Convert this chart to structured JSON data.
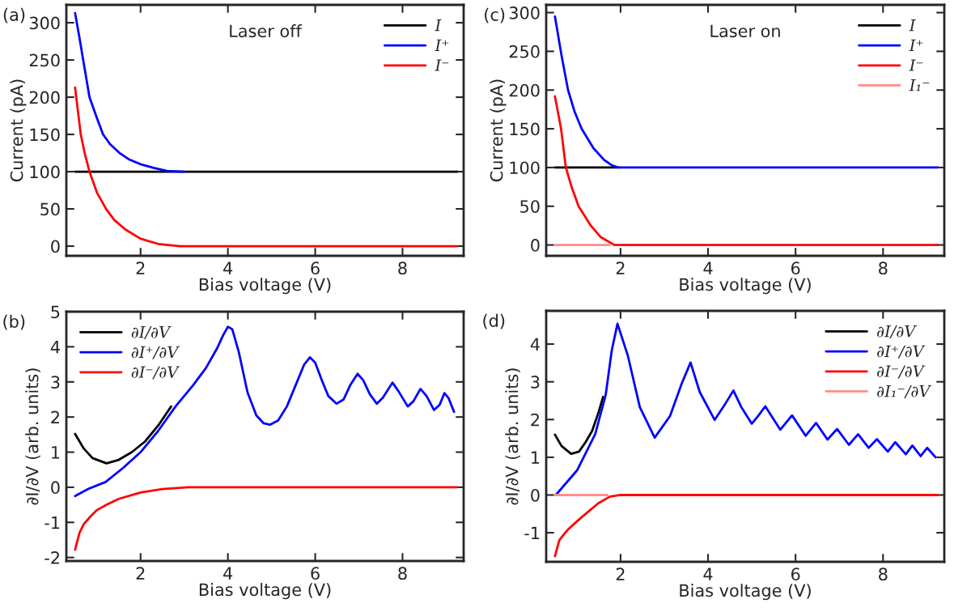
{
  "chart_data": [
    {
      "type": "line",
      "xlabel": "Bias voltage (V)",
      "ylabel": "Current (pA)",
      "annotations": [
        "(a)",
        "Laser off"
      ],
      "legend": "top right",
      "xlim": [
        0.3,
        9.4
      ],
      "xticks": [
        2,
        4,
        6,
        8
      ],
      "ylim": [
        -13,
        324
      ],
      "yticks": [
        0,
        50,
        100,
        150,
        200,
        250,
        300
      ],
      "series": [
        {
          "name": "I",
          "color": "#000000",
          "x": [
            0.5,
            9.25
          ],
          "values": [
            100,
            100
          ]
        },
        {
          "name": "I⁺",
          "color": "#0000ff",
          "x": [
            0.5,
            0.6,
            0.7,
            0.83,
            1.0,
            1.14,
            1.3,
            1.52,
            1.75,
            2.0,
            2.3,
            2.6,
            3.0
          ],
          "values": [
            313,
            280,
            245,
            200,
            172,
            150,
            137,
            125,
            116,
            110,
            105,
            101,
            100
          ]
        },
        {
          "name": "I⁻",
          "color": "#ff0000",
          "x": [
            0.5,
            0.63,
            0.72,
            0.83,
            1.0,
            1.21,
            1.4,
            1.66,
            2.0,
            2.4,
            2.9,
            9.25
          ],
          "values": [
            213,
            150,
            125,
            100,
            72,
            50,
            35,
            22,
            10,
            3,
            0,
            0
          ]
        }
      ]
    },
    {
      "type": "line",
      "xlabel": "Bias voltage (V)",
      "ylabel": "Current (pA)",
      "annotations": [
        "(c)",
        "Laser on"
      ],
      "legend": "top right",
      "xlim": [
        0.3,
        9.4
      ],
      "xticks": [
        2,
        4,
        6,
        8
      ],
      "ylim": [
        -14,
        310
      ],
      "yticks": [
        0,
        50,
        100,
        150,
        200,
        250,
        300
      ],
      "series": [
        {
          "name": "I",
          "color": "#000000",
          "x": [
            0.5,
            1.95
          ],
          "values": [
            100,
            100
          ]
        },
        {
          "name": "I⁺",
          "color": "#0000ff",
          "x": [
            0.5,
            0.65,
            0.8,
            0.95,
            1.11,
            1.38,
            1.62,
            1.8,
            1.95,
            9.25
          ],
          "values": [
            295,
            245,
            200,
            172,
            150,
            125,
            110,
            103,
            100,
            100
          ]
        },
        {
          "name": "I⁻",
          "color": "#ff0000",
          "x": [
            0.5,
            0.64,
            0.75,
            0.88,
            1.04,
            1.32,
            1.55,
            1.86,
            9.25
          ],
          "values": [
            192,
            150,
            100,
            75,
            50,
            25,
            10,
            0,
            0
          ]
        },
        {
          "name": "I₁⁻",
          "color": "#ff8c8c",
          "x": [
            0.5,
            1.75
          ],
          "values": [
            0,
            0
          ]
        }
      ]
    },
    {
      "type": "line",
      "xlabel": "Bias voltage (V)",
      "ylabel": "∂I/∂V (arb. units)",
      "annotations": [
        "(b)"
      ],
      "legend": "top left",
      "xlim": [
        0.3,
        9.4
      ],
      "xticks": [
        2,
        4,
        6,
        8
      ],
      "ylim": [
        -2.1,
        5
      ],
      "yticks": [
        -2,
        -1,
        0,
        1,
        2,
        3,
        4,
        5
      ],
      "series": [
        {
          "name": "∂I/∂V",
          "color": "#000000",
          "x": [
            0.5,
            0.7,
            0.9,
            1.22,
            1.5,
            1.8,
            2.1,
            2.4,
            2.7
          ],
          "values": [
            1.52,
            1.1,
            0.83,
            0.68,
            0.78,
            1.0,
            1.3,
            1.75,
            2.3
          ]
        },
        {
          "name": "∂I⁺/∂V",
          "color": "#0000ff",
          "x": [
            0.5,
            0.8,
            1.2,
            1.6,
            2.0,
            2.4,
            2.8,
            3.2,
            3.5,
            3.75,
            3.9,
            4.0,
            4.1,
            4.25,
            4.45,
            4.65,
            4.82,
            4.96,
            5.15,
            5.35,
            5.55,
            5.75,
            5.88,
            6.0,
            6.15,
            6.3,
            6.49,
            6.65,
            6.8,
            6.97,
            7.1,
            7.25,
            7.41,
            7.55,
            7.77,
            7.9,
            8.12,
            8.25,
            8.41,
            8.55,
            8.72,
            8.85,
            8.96,
            9.05,
            9.18
          ],
          "values": [
            -0.25,
            -0.05,
            0.15,
            0.55,
            1.0,
            1.6,
            2.3,
            2.9,
            3.4,
            3.95,
            4.35,
            4.57,
            4.5,
            3.85,
            2.7,
            2.05,
            1.82,
            1.78,
            1.9,
            2.3,
            2.9,
            3.5,
            3.7,
            3.55,
            3.05,
            2.6,
            2.38,
            2.5,
            2.9,
            3.23,
            3.05,
            2.65,
            2.38,
            2.55,
            2.98,
            2.75,
            2.3,
            2.45,
            2.8,
            2.6,
            2.2,
            2.35,
            2.68,
            2.55,
            2.15
          ]
        },
        {
          "name": "∂I⁻/∂V",
          "color": "#ff0000",
          "x": [
            0.5,
            0.6,
            0.7,
            0.84,
            1.0,
            1.22,
            1.5,
            2.0,
            2.5,
            3.1,
            9.25
          ],
          "values": [
            -1.78,
            -1.3,
            -1.05,
            -0.85,
            -0.65,
            -0.5,
            -0.33,
            -0.15,
            -0.05,
            0,
            0
          ]
        }
      ]
    },
    {
      "type": "line",
      "xlabel": "Bias voltage (V)",
      "ylabel": "∂I/∂V (arb. units)",
      "annotations": [
        "(d)"
      ],
      "legend": "top right",
      "xlim": [
        0.3,
        9.4
      ],
      "xticks": [
        2,
        4,
        6,
        8
      ],
      "ylim": [
        -1.77,
        4.88
      ],
      "yticks": [
        -1,
        0,
        1,
        2,
        3,
        4
      ],
      "series": [
        {
          "name": "∂I/∂V",
          "color": "#000000",
          "x": [
            0.5,
            0.65,
            0.87,
            1.05,
            1.2,
            1.35,
            1.5,
            1.6
          ],
          "values": [
            1.6,
            1.3,
            1.09,
            1.15,
            1.4,
            1.7,
            2.2,
            2.6
          ]
        },
        {
          "name": "∂I⁺/∂V",
          "color": "#0000ff",
          "x": [
            0.52,
            1.01,
            1.42,
            1.66,
            1.8,
            1.93,
            2.17,
            2.44,
            2.78,
            3.13,
            3.4,
            3.6,
            3.81,
            4.15,
            4.39,
            4.58,
            4.76,
            5.0,
            5.14,
            5.31,
            5.65,
            5.92,
            6.23,
            6.47,
            6.73,
            6.95,
            7.22,
            7.43,
            7.67,
            7.86,
            8.11,
            8.28,
            8.52,
            8.67,
            8.86,
            9.01,
            9.2
          ],
          "values": [
            0.0,
            0.66,
            1.61,
            2.65,
            3.84,
            4.54,
            3.68,
            2.33,
            1.52,
            2.09,
            2.96,
            3.51,
            2.73,
            1.99,
            2.41,
            2.77,
            2.33,
            1.89,
            2.09,
            2.35,
            1.73,
            2.11,
            1.57,
            1.91,
            1.47,
            1.75,
            1.33,
            1.61,
            1.25,
            1.48,
            1.15,
            1.4,
            1.08,
            1.31,
            1.03,
            1.25,
            1.0
          ]
        },
        {
          "name": "∂I⁻/∂V",
          "color": "#ff0000",
          "x": [
            0.5,
            0.6,
            0.7,
            0.81,
            1.0,
            1.15,
            1.49,
            1.76,
            2.0,
            9.25
          ],
          "values": [
            -1.62,
            -1.2,
            -1.05,
            -0.9,
            -0.7,
            -0.55,
            -0.22,
            -0.04,
            0,
            0
          ]
        },
        {
          "name": "∂I₁⁻/∂V",
          "color": "#ff8c8c",
          "x": [
            0.5,
            1.7
          ],
          "values": [
            0,
            0
          ]
        }
      ]
    }
  ]
}
